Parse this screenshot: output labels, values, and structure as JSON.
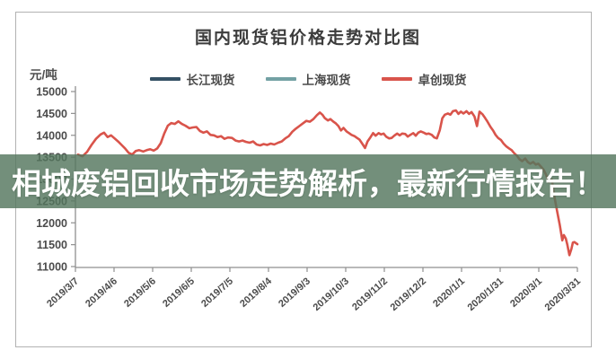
{
  "chart_data": {
    "type": "line",
    "title": "国内现货铝价格走势对比图",
    "y_unit": "元/吨",
    "ylim": [
      11000,
      15000
    ],
    "yticks": [
      15000,
      14500,
      14000,
      13500,
      13000,
      12500,
      12000,
      11500,
      11000
    ],
    "xticklabels": [
      "2019/3/7",
      "2019/4/6",
      "2019/5/6",
      "2019/6/5",
      "2019/7/5",
      "2019/8/4",
      "2019/9/3",
      "2019/10/3",
      "2019/11/2",
      "2019/12/2",
      "2020/1/1",
      "2020/1/31",
      "2020/3/1",
      "2020/3/31"
    ],
    "grid": false,
    "legend_position": "top",
    "legend": [
      {
        "label": "长江现货",
        "color": "#345064"
      },
      {
        "label": "上海现货",
        "color": "#73a1a4"
      },
      {
        "label": "卓创现货",
        "color": "#d9544b"
      }
    ],
    "series": [
      {
        "name": "卓创现货",
        "color": "#d9544b",
        "points": [
          [
            0.005,
            13560
          ],
          [
            0.014,
            13520
          ],
          [
            0.023,
            13620
          ],
          [
            0.032,
            13780
          ],
          [
            0.041,
            13920
          ],
          [
            0.05,
            14020
          ],
          [
            0.057,
            14060
          ],
          [
            0.064,
            13960
          ],
          [
            0.071,
            14000
          ],
          [
            0.078,
            13930
          ],
          [
            0.085,
            13860
          ],
          [
            0.092,
            13780
          ],
          [
            0.099,
            13700
          ],
          [
            0.106,
            13600
          ],
          [
            0.113,
            13560
          ],
          [
            0.12,
            13640
          ],
          [
            0.127,
            13660
          ],
          [
            0.135,
            13630
          ],
          [
            0.142,
            13660
          ],
          [
            0.149,
            13680
          ],
          [
            0.156,
            13650
          ],
          [
            0.163,
            13700
          ],
          [
            0.17,
            13820
          ],
          [
            0.177,
            14040
          ],
          [
            0.184,
            14220
          ],
          [
            0.191,
            14280
          ],
          [
            0.198,
            14260
          ],
          [
            0.205,
            14320
          ],
          [
            0.212,
            14260
          ],
          [
            0.219,
            14220
          ],
          [
            0.227,
            14160
          ],
          [
            0.234,
            14180
          ],
          [
            0.241,
            14190
          ],
          [
            0.248,
            14100
          ],
          [
            0.255,
            14060
          ],
          [
            0.262,
            14090
          ],
          [
            0.269,
            14010
          ],
          [
            0.276,
            14000
          ],
          [
            0.283,
            13960
          ],
          [
            0.29,
            13980
          ],
          [
            0.297,
            13920
          ],
          [
            0.304,
            13950
          ],
          [
            0.312,
            13940
          ],
          [
            0.319,
            13880
          ],
          [
            0.326,
            13860
          ],
          [
            0.333,
            13880
          ],
          [
            0.34,
            13850
          ],
          [
            0.347,
            13830
          ],
          [
            0.354,
            13860
          ],
          [
            0.361,
            13790
          ],
          [
            0.368,
            13770
          ],
          [
            0.375,
            13800
          ],
          [
            0.382,
            13780
          ],
          [
            0.389,
            13810
          ],
          [
            0.396,
            13790
          ],
          [
            0.404,
            13830
          ],
          [
            0.411,
            13860
          ],
          [
            0.418,
            13930
          ],
          [
            0.425,
            13980
          ],
          [
            0.432,
            14080
          ],
          [
            0.439,
            14150
          ],
          [
            0.446,
            14210
          ],
          [
            0.453,
            14270
          ],
          [
            0.46,
            14330
          ],
          [
            0.467,
            14310
          ],
          [
            0.474,
            14370
          ],
          [
            0.481,
            14460
          ],
          [
            0.487,
            14520
          ],
          [
            0.492,
            14470
          ],
          [
            0.497,
            14390
          ],
          [
            0.503,
            14340
          ],
          [
            0.508,
            14370
          ],
          [
            0.513,
            14320
          ],
          [
            0.519,
            14270
          ],
          [
            0.524,
            14210
          ],
          [
            0.529,
            14110
          ],
          [
            0.534,
            14170
          ],
          [
            0.54,
            14090
          ],
          [
            0.545,
            14050
          ],
          [
            0.55,
            14010
          ],
          [
            0.556,
            13980
          ],
          [
            0.561,
            13940
          ],
          [
            0.566,
            13900
          ],
          [
            0.572,
            13800
          ],
          [
            0.577,
            13710
          ],
          [
            0.582,
            13860
          ],
          [
            0.588,
            13960
          ],
          [
            0.593,
            14050
          ],
          [
            0.598,
            13990
          ],
          [
            0.604,
            14050
          ],
          [
            0.609,
            14020
          ],
          [
            0.614,
            14040
          ],
          [
            0.619,
            13970
          ],
          [
            0.625,
            13930
          ],
          [
            0.63,
            13940
          ],
          [
            0.635,
            13990
          ],
          [
            0.641,
            14040
          ],
          [
            0.646,
            14000
          ],
          [
            0.651,
            14040
          ],
          [
            0.657,
            14030
          ],
          [
            0.662,
            13970
          ],
          [
            0.667,
            14010
          ],
          [
            0.673,
            14050
          ],
          [
            0.678,
            13990
          ],
          [
            0.683,
            14060
          ],
          [
            0.688,
            14090
          ],
          [
            0.694,
            14060
          ],
          [
            0.699,
            14030
          ],
          [
            0.704,
            14040
          ],
          [
            0.71,
            14010
          ],
          [
            0.715,
            13950
          ],
          [
            0.72,
            13930
          ],
          [
            0.726,
            14120
          ],
          [
            0.731,
            14390
          ],
          [
            0.736,
            14470
          ],
          [
            0.742,
            14500
          ],
          [
            0.747,
            14470
          ],
          [
            0.752,
            14550
          ],
          [
            0.758,
            14570
          ],
          [
            0.763,
            14490
          ],
          [
            0.768,
            14540
          ],
          [
            0.773,
            14500
          ],
          [
            0.779,
            14550
          ],
          [
            0.784,
            14490
          ],
          [
            0.789,
            14530
          ],
          [
            0.795,
            14430
          ],
          [
            0.8,
            14210
          ],
          [
            0.805,
            14540
          ],
          [
            0.811,
            14480
          ],
          [
            0.816,
            14400
          ],
          [
            0.821,
            14310
          ],
          [
            0.827,
            14190
          ],
          [
            0.832,
            14110
          ],
          [
            0.837,
            14010
          ],
          [
            0.842,
            13940
          ],
          [
            0.848,
            13890
          ],
          [
            0.853,
            13810
          ],
          [
            0.858,
            13750
          ],
          [
            0.864,
            13700
          ],
          [
            0.869,
            13660
          ],
          [
            0.874,
            13590
          ],
          [
            0.88,
            13530
          ],
          [
            0.885,
            13450
          ],
          [
            0.89,
            13410
          ],
          [
            0.896,
            13470
          ],
          [
            0.901,
            13390
          ],
          [
            0.906,
            13350
          ],
          [
            0.912,
            13390
          ],
          [
            0.917,
            13330
          ],
          [
            0.922,
            13350
          ],
          [
            0.927,
            13290
          ],
          [
            0.933,
            13210
          ],
          [
            0.938,
            13090
          ],
          [
            0.943,
            12930
          ],
          [
            0.949,
            12990
          ],
          [
            0.954,
            12610
          ],
          [
            0.959,
            12300
          ],
          [
            0.965,
            11950
          ],
          [
            0.97,
            11600
          ],
          [
            0.973,
            11720
          ],
          [
            0.977,
            11640
          ],
          [
            0.98,
            11500
          ],
          [
            0.984,
            11260
          ],
          [
            0.988,
            11400
          ],
          [
            0.991,
            11550
          ],
          [
            0.994,
            11560
          ],
          [
            1.0,
            11510
          ]
        ]
      }
    ]
  },
  "overlay_banner": {
    "text": "相城废铝回收市场走势解析，最新行情报告！",
    "background": "rgba(84,118,94,0.82)",
    "text_color": "#ffffff"
  }
}
